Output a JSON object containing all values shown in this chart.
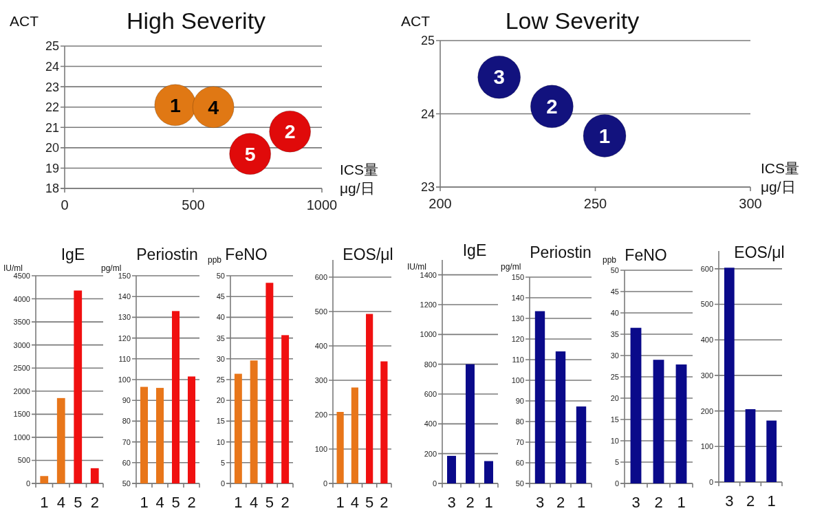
{
  "chart_data": [
    {
      "type": "scatter",
      "title": "High Severity",
      "ylabel": "ACT",
      "xlabel": "ICS量 μg/日",
      "xlim": [
        0,
        1000
      ],
      "xticks": [
        0,
        500,
        1000
      ],
      "ylim": [
        18,
        25
      ],
      "yticks": [
        18,
        19,
        20,
        21,
        22,
        23,
        24,
        25
      ],
      "grid": "y",
      "marker": "circle",
      "series": [
        {
          "name": "1",
          "color": "#e07814",
          "x": [
            430
          ],
          "values": [
            22.1
          ]
        },
        {
          "name": "4",
          "color": "#e07814",
          "x": [
            578
          ],
          "values": [
            22.0
          ]
        },
        {
          "name": "5",
          "color": "#e00a0a",
          "x": [
            721
          ],
          "values": [
            19.7
          ]
        },
        {
          "name": "2",
          "color": "#e00a0a",
          "x": [
            876
          ],
          "values": [
            20.8
          ]
        }
      ]
    },
    {
      "type": "scatter",
      "title": "Low Severity",
      "ylabel": "ACT",
      "xlabel": "ICS量 μg/日",
      "xlim": [
        200,
        300
      ],
      "xticks": [
        200,
        250,
        300
      ],
      "ylim": [
        23,
        25
      ],
      "yticks": [
        23,
        24,
        25
      ],
      "grid": "y",
      "marker": "circle",
      "series": [
        {
          "name": "3",
          "color": "#12127e",
          "x": [
            219
          ],
          "values": [
            24.5
          ]
        },
        {
          "name": "2",
          "color": "#12127e",
          "x": [
            236
          ],
          "values": [
            24.1
          ]
        },
        {
          "name": "1",
          "color": "#12127e",
          "x": [
            253
          ],
          "values": [
            23.7
          ]
        }
      ]
    },
    {
      "type": "bar",
      "title": "IgE",
      "ylabel": "IU/ml",
      "categories": [
        "1",
        "4",
        "5",
        "2"
      ],
      "values": [
        160,
        1850,
        4180,
        330
      ],
      "colors": [
        "#e8761a",
        "#e8761a",
        "#f01010",
        "#f01010"
      ],
      "ylim": [
        0,
        4500
      ],
      "yticks": [
        0,
        500,
        1000,
        1500,
        2000,
        2500,
        3000,
        3500,
        4000,
        4500
      ],
      "grid": "y"
    },
    {
      "type": "bar",
      "title": "Periostin",
      "ylabel": "pg/ml",
      "categories": [
        "1",
        "4",
        "5",
        "2"
      ],
      "values": [
        96.5,
        96,
        133,
        101.5
      ],
      "colors": [
        "#e8761a",
        "#e8761a",
        "#f01010",
        "#f01010"
      ],
      "ylim": [
        50,
        150
      ],
      "yticks": [
        50,
        60,
        70,
        80,
        90,
        100,
        110,
        120,
        130,
        140,
        150
      ],
      "grid": "y"
    },
    {
      "type": "bar",
      "title": "FeNO",
      "ylabel": "ppb",
      "categories": [
        "1",
        "4",
        "5",
        "2"
      ],
      "values": [
        26.4,
        29.6,
        48.3,
        35.7
      ],
      "colors": [
        "#e8761a",
        "#e8761a",
        "#f01010",
        "#f01010"
      ],
      "ylim": [
        0,
        50
      ],
      "yticks": [
        0,
        5,
        10,
        15,
        20,
        25,
        30,
        35,
        40,
        45,
        50
      ],
      "grid": "y"
    },
    {
      "type": "bar",
      "title": "EOS/μl",
      "categories": [
        "1",
        "4",
        "5",
        "2"
      ],
      "values": [
        208,
        279,
        493,
        355
      ],
      "colors": [
        "#e8761a",
        "#e8761a",
        "#f01010",
        "#f01010"
      ],
      "ylim": [
        0,
        650
      ],
      "yticks": [
        0,
        100,
        200,
        300,
        400,
        500,
        600
      ],
      "grid": "y"
    },
    {
      "type": "bar",
      "title": "IgE",
      "ylabel": "IU/ml",
      "categories": [
        "3",
        "2",
        "1"
      ],
      "values": [
        185,
        800,
        150
      ],
      "colors": [
        "#0a0a8a",
        "#0a0a8a",
        "#0a0a8a"
      ],
      "ylim": [
        0,
        1500
      ],
      "yticks": [
        0,
        200,
        400,
        600,
        800,
        1000,
        1200,
        1400
      ],
      "grid": "y"
    },
    {
      "type": "bar",
      "title": "Periostin",
      "ylabel": "pg/ml",
      "categories": [
        "3",
        "2",
        "1"
      ],
      "values": [
        133.5,
        114,
        87.3
      ],
      "colors": [
        "#0a0a8a",
        "#0a0a8a",
        "#0a0a8a"
      ],
      "ylim": [
        50,
        150
      ],
      "yticks": [
        50,
        60,
        70,
        80,
        90,
        100,
        110,
        120,
        130,
        140,
        150
      ],
      "grid": "y"
    },
    {
      "type": "bar",
      "title": "FeNO",
      "ylabel": "ppb",
      "categories": [
        "3",
        "2",
        "1"
      ],
      "values": [
        36.5,
        29,
        27.9
      ],
      "colors": [
        "#0a0a8a",
        "#0a0a8a",
        "#0a0a8a"
      ],
      "ylim": [
        0,
        50
      ],
      "yticks": [
        0,
        5,
        10,
        15,
        20,
        25,
        30,
        35,
        40,
        45,
        50
      ],
      "grid": "y"
    },
    {
      "type": "bar",
      "title": "EOS/μl",
      "categories": [
        "3",
        "2",
        "1"
      ],
      "values": [
        603,
        205,
        173
      ],
      "colors": [
        "#0a0a8a",
        "#0a0a8a",
        "#0a0a8a"
      ],
      "ylim": [
        0,
        650
      ],
      "yticks": [
        0,
        100,
        200,
        300,
        400,
        500,
        600
      ],
      "grid": "y"
    }
  ]
}
